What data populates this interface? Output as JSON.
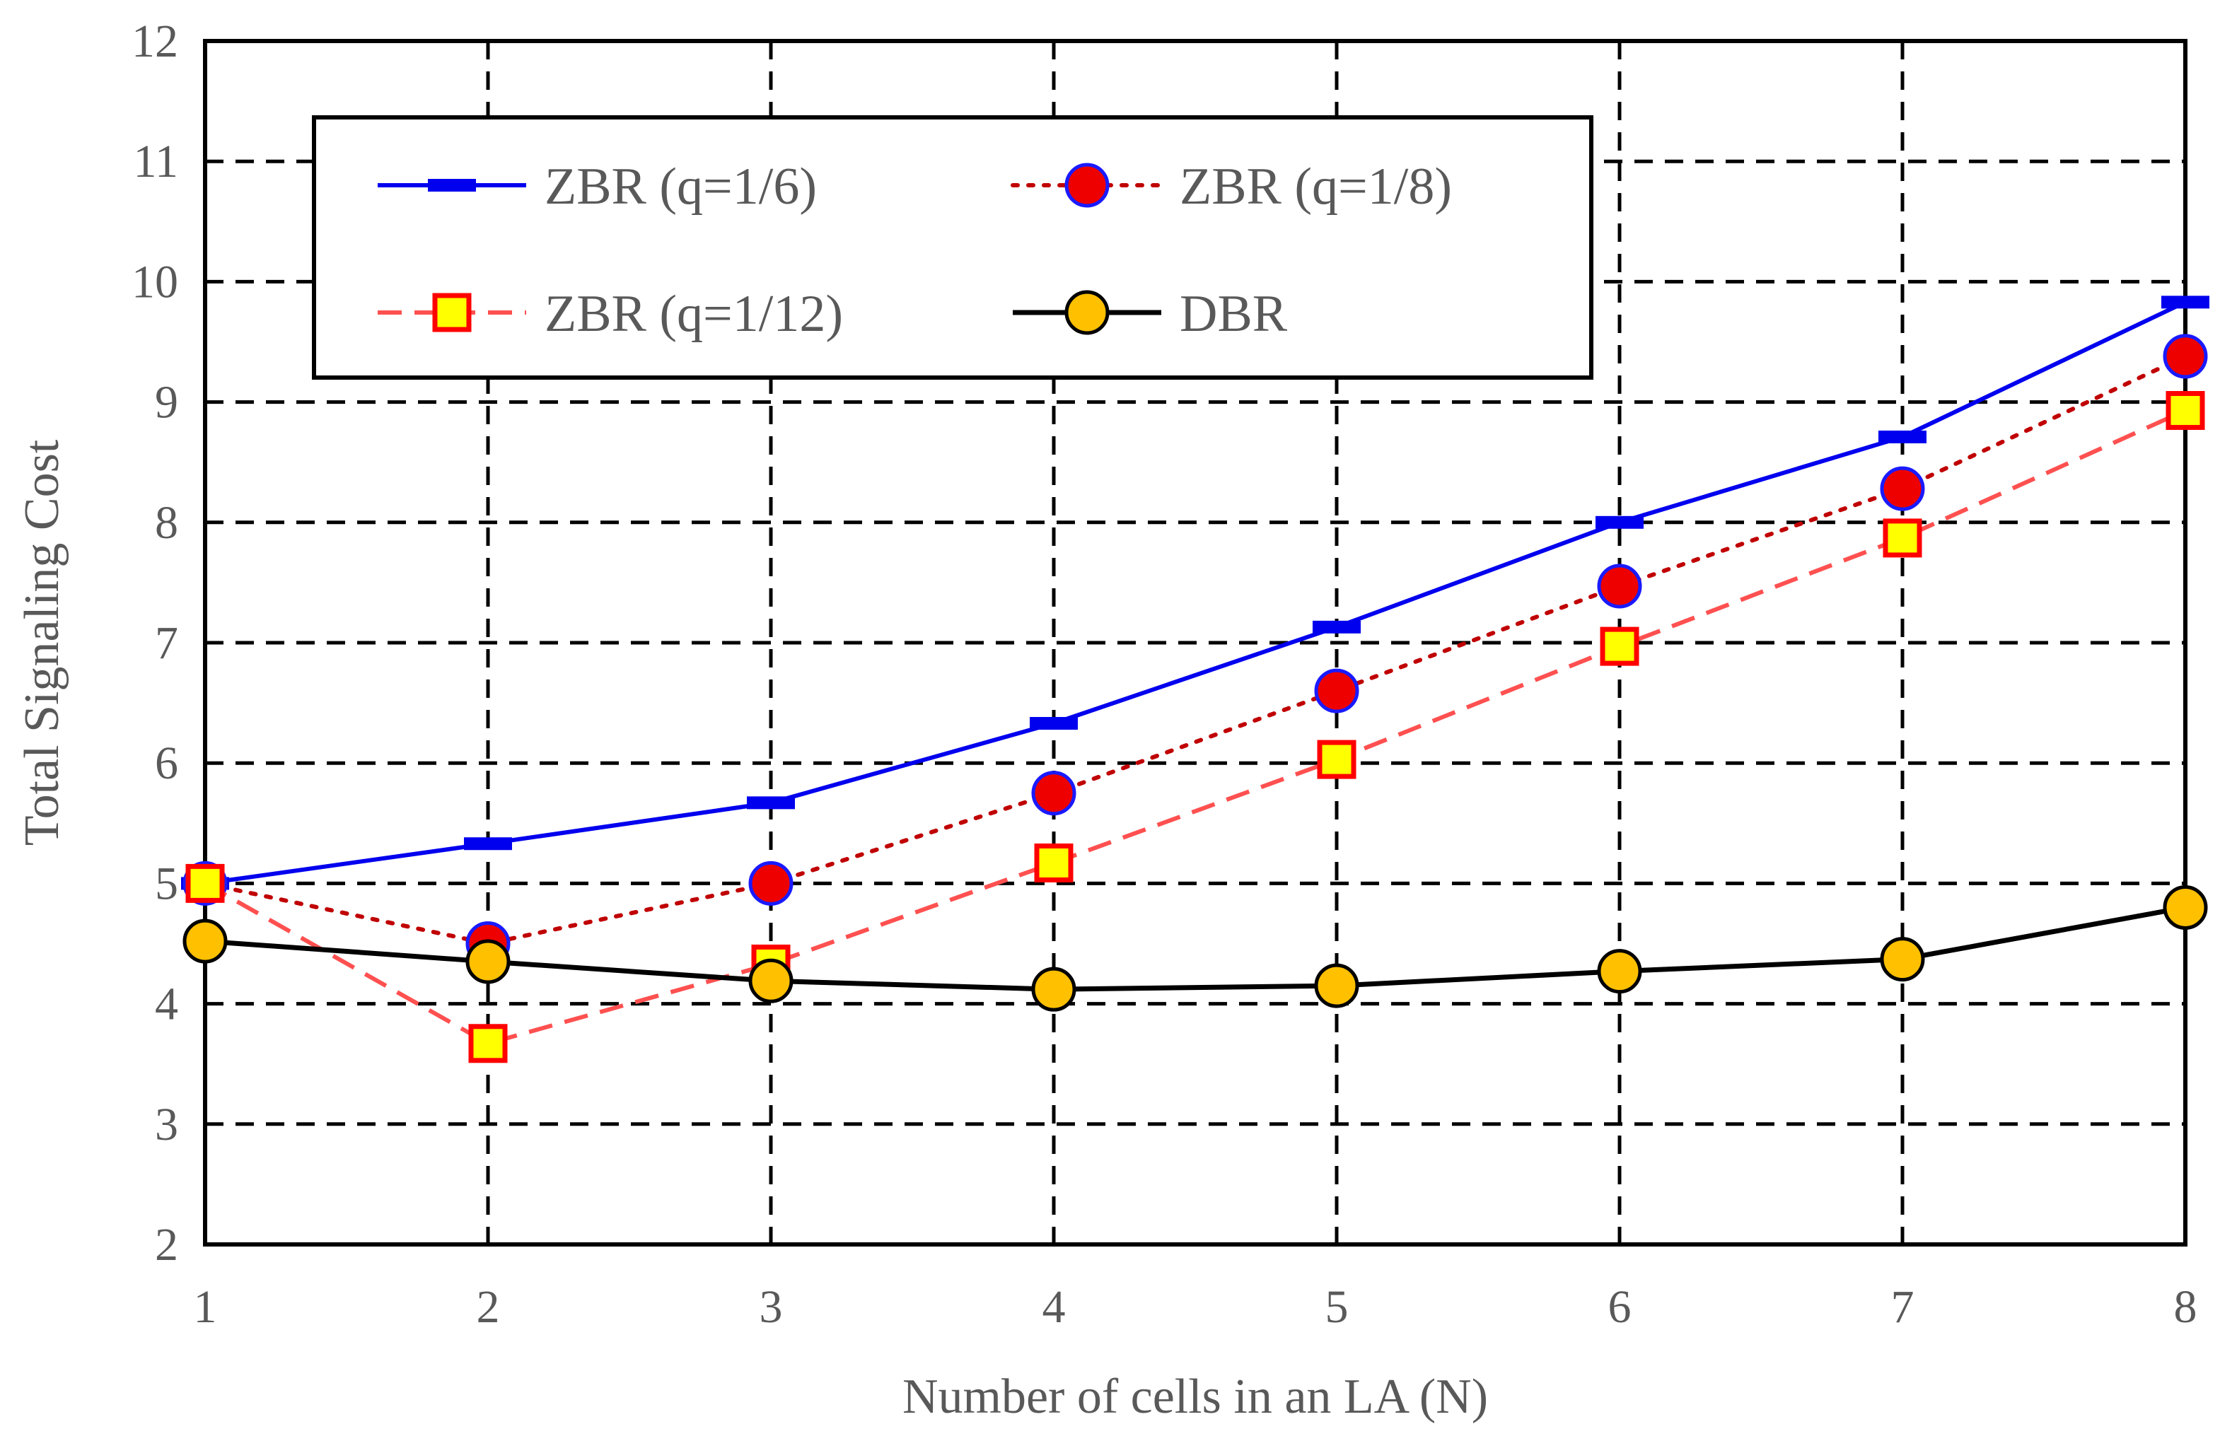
{
  "chart_data": {
    "type": "line",
    "title": "",
    "xlabel": "Number of cells in an LA (N)",
    "ylabel": "Total Signaling Cost",
    "xlim": [
      1,
      8
    ],
    "ylim": [
      2,
      12
    ],
    "x_ticks": [
      "1",
      "2",
      "3",
      "4",
      "5",
      "6",
      "7",
      "8"
    ],
    "y_ticks": [
      "2",
      "3",
      "4",
      "5",
      "6",
      "7",
      "8",
      "9",
      "10",
      "11",
      "12"
    ],
    "grid": true,
    "grid_style": "dashed",
    "legend_position": "top-left (inside)",
    "x": [
      1,
      2,
      3,
      4,
      5,
      6,
      7,
      8
    ],
    "series": [
      {
        "name": "ZBR (q=1/6)",
        "values": [
          5.0,
          5.33,
          5.67,
          6.33,
          7.13,
          8.0,
          8.71,
          9.83
        ],
        "line_color": "#0000ee",
        "line_style": "solid",
        "marker": "dash",
        "marker_fill": "#0000ee",
        "marker_edge": "#0000ee"
      },
      {
        "name": "ZBR (q=1/8)",
        "values": [
          5.0,
          4.5,
          5.0,
          5.75,
          6.6,
          7.47,
          8.28,
          9.38
        ],
        "line_color": "#c00000",
        "line_style": "dotted",
        "marker": "circle",
        "marker_fill": "#ee0000",
        "marker_edge": "#1a1aff"
      },
      {
        "name": "ZBR (q=1/12)",
        "values": [
          5.0,
          3.67,
          4.33,
          5.17,
          6.03,
          6.97,
          7.87,
          8.93
        ],
        "line_color": "#ff5050",
        "line_style": "dashed",
        "marker": "square",
        "marker_fill": "#ffff00",
        "marker_edge": "#ff0000"
      },
      {
        "name": "DBR",
        "values": [
          4.52,
          4.35,
          4.19,
          4.12,
          4.15,
          4.27,
          4.37,
          4.8
        ],
        "line_color": "#000000",
        "line_style": "solid",
        "marker": "circle",
        "marker_fill": "#ffc000",
        "marker_edge": "#000000"
      }
    ]
  }
}
